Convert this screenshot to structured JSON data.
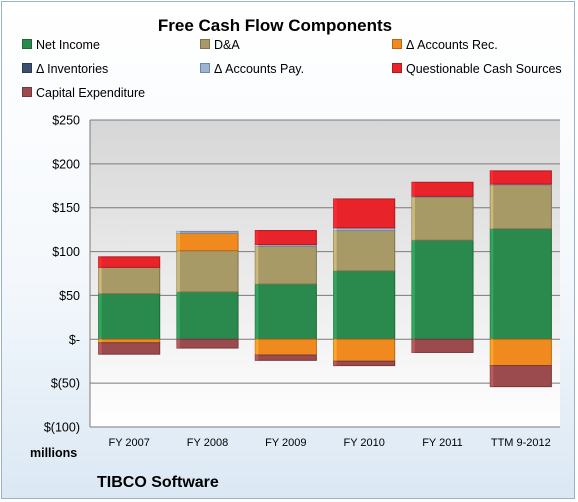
{
  "chart_data": {
    "type": "bar",
    "stacked": true,
    "title": "Free Cash Flow Components",
    "ylabel": "millions",
    "ylim": [
      -100,
      250
    ],
    "yticks": [
      250,
      200,
      150,
      100,
      50,
      0,
      -50,
      -100
    ],
    "ytick_labels": [
      "$250",
      "$200",
      "$150",
      "$100",
      "$50",
      "$-",
      "$(50)",
      "$(100)"
    ],
    "categories": [
      "FY 2007",
      "FY 2008",
      "FY 2009",
      "FY 2010",
      "FY 2011",
      "TTM 9-2012"
    ],
    "series": [
      {
        "name": "Net Income",
        "color": "#2a8a4e",
        "values": [
          52,
          54,
          63,
          78,
          113,
          126
        ]
      },
      {
        "name": "D&A",
        "color": "#a89a66",
        "values": [
          30,
          47,
          43,
          46,
          49,
          50
        ]
      },
      {
        "name": "Δ Accounts Rec.",
        "color": "#f08a1e",
        "values": [
          -4,
          20,
          -18,
          -25,
          0,
          -30
        ]
      },
      {
        "name": "Δ Inventories",
        "color": "#3a4f6e",
        "values": [
          0,
          0,
          0,
          0,
          0,
          0
        ]
      },
      {
        "name": "Δ Accounts Pay.",
        "color": "#9bb5d6",
        "values": [
          0,
          2,
          2,
          3,
          1,
          1
        ]
      },
      {
        "name": "Questionable Cash Sources",
        "color": "#e8232a",
        "values": [
          12,
          0,
          16,
          33,
          16,
          15
        ]
      },
      {
        "name": "Capital Expenditure",
        "color": "#9b4b4e",
        "values": [
          -13,
          -10,
          -6,
          -5,
          -15,
          -24
        ]
      }
    ],
    "grid": true,
    "legend_position": "top"
  },
  "footer": "TIBCO Software"
}
